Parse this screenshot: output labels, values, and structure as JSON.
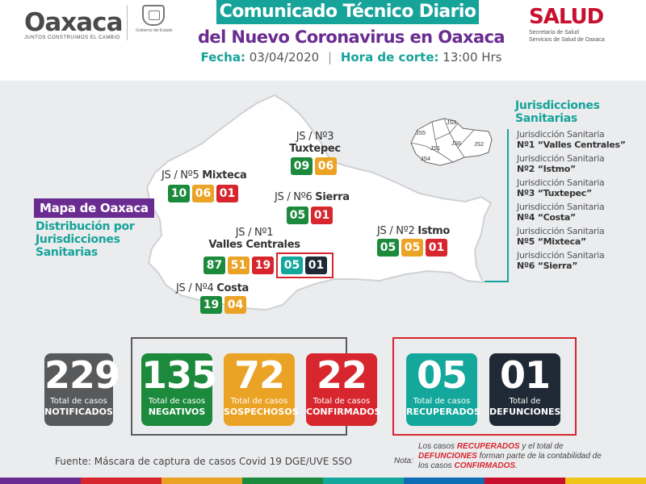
{
  "header": {
    "logo_word": "Oaxaca",
    "logo_slogan": "JUNTOS CONSTRUIMOS EL CAMBIO",
    "seal_caption": "Gobierno del Estado",
    "title_line1": "Comunicado Técnico Diario",
    "title_line2": "del Nuevo Coronavirus en Oaxaca",
    "fecha_label": "Fecha:",
    "fecha_value": "03/04/2020",
    "hora_label": "Hora de corte:",
    "hora_value": "13:00 Hrs",
    "salud_brand": "SALUD",
    "salud_sub1": "Secretaría de Salud",
    "salud_sub2": "Servicios de Salud de Oaxaca"
  },
  "map": {
    "mapa_label": "Mapa de Oaxaca",
    "dist_label": "Distribución por Jurisdicciones Sanitarias",
    "jurisdictions": {
      "tuxtepec": {
        "prefix": "JS / Nº3",
        "name": "Tuxtepec",
        "values": [
          "09",
          "06"
        ]
      },
      "mixteca": {
        "prefix": "JS / Nº5",
        "name": "Mixteca",
        "values": [
          "10",
          "06",
          "01"
        ]
      },
      "sierra": {
        "prefix": "JS / Nº6",
        "name": "Sierra",
        "values": [
          "05",
          "01"
        ]
      },
      "valles": {
        "prefix": "JS / Nº1",
        "name": "Valles Centrales",
        "values": [
          "87",
          "51",
          "19"
        ],
        "extra": [
          "05",
          "01"
        ]
      },
      "istmo": {
        "prefix": "JS / Nº2",
        "name": "Istmo",
        "values": [
          "05",
          "05",
          "01"
        ]
      },
      "costa": {
        "prefix": "JS / Nº4",
        "name": "Costa",
        "values": [
          "19",
          "04"
        ]
      }
    },
    "inset_labels": [
      "JS3",
      "JS5",
      "JS6",
      "JS2",
      "JS1",
      "JS4"
    ]
  },
  "legend": {
    "title": "Jurisdicciones Sanitarias",
    "items": [
      {
        "line1": "Jurisdicción Sanitaria",
        "line2": "Nº1 “Valles Centrales”"
      },
      {
        "line1": "Jurisdicción Sanitaria",
        "line2": "Nº2 “Istmo”"
      },
      {
        "line1": "Jurisdicción Sanitaria",
        "line2": "Nº3 “Tuxtepec”"
      },
      {
        "line1": "Jurisdicción Sanitaria",
        "line2": "Nº4 “Costa”"
      },
      {
        "line1": "Jurisdicción Sanitaria",
        "line2": "Nº5 “Mixteca”"
      },
      {
        "line1": "Jurisdicción Sanitaria",
        "line2": "Nº6 “Sierra”"
      }
    ]
  },
  "totals": [
    {
      "num": "229",
      "t1": "Total de casos",
      "t2": "NOTIFICADOS"
    },
    {
      "num": "135",
      "t1": "Total de casos",
      "t2": "NEGATIVOS"
    },
    {
      "num": "72",
      "t1": "Total de casos",
      "t2": "SOSPECHOSOS"
    },
    {
      "num": "22",
      "t1": "Total de casos",
      "t2": "CONFIRMADOS"
    },
    {
      "num": "05",
      "t1": "Total de casos",
      "t2": "RECUPERADOS"
    },
    {
      "num": "01",
      "t1": "Total de",
      "t2": "DEFUNCIONES"
    }
  ],
  "footer": {
    "fuente": "Fuente: Máscara de captura de casos Covid 19 DGE/UVE SSO",
    "nota_label": "Nota:",
    "nota_p1": "Los casos ",
    "nota_recuperados": "RECUPERADOS",
    "nota_p2": " y el total de ",
    "nota_defunciones": "DEFUNCIONES",
    "nota_p3": " forman parte de la contabilidad de los casos ",
    "nota_confirmados": "CONFIRMADOS",
    "nota_p4": "."
  },
  "colors": {
    "teal": "#14a79c",
    "purple": "#6a2c91",
    "green": "#1b8a3c",
    "orange": "#eba326",
    "red": "#d7262e",
    "black": "#1f2a36",
    "gray": "#58595b"
  }
}
